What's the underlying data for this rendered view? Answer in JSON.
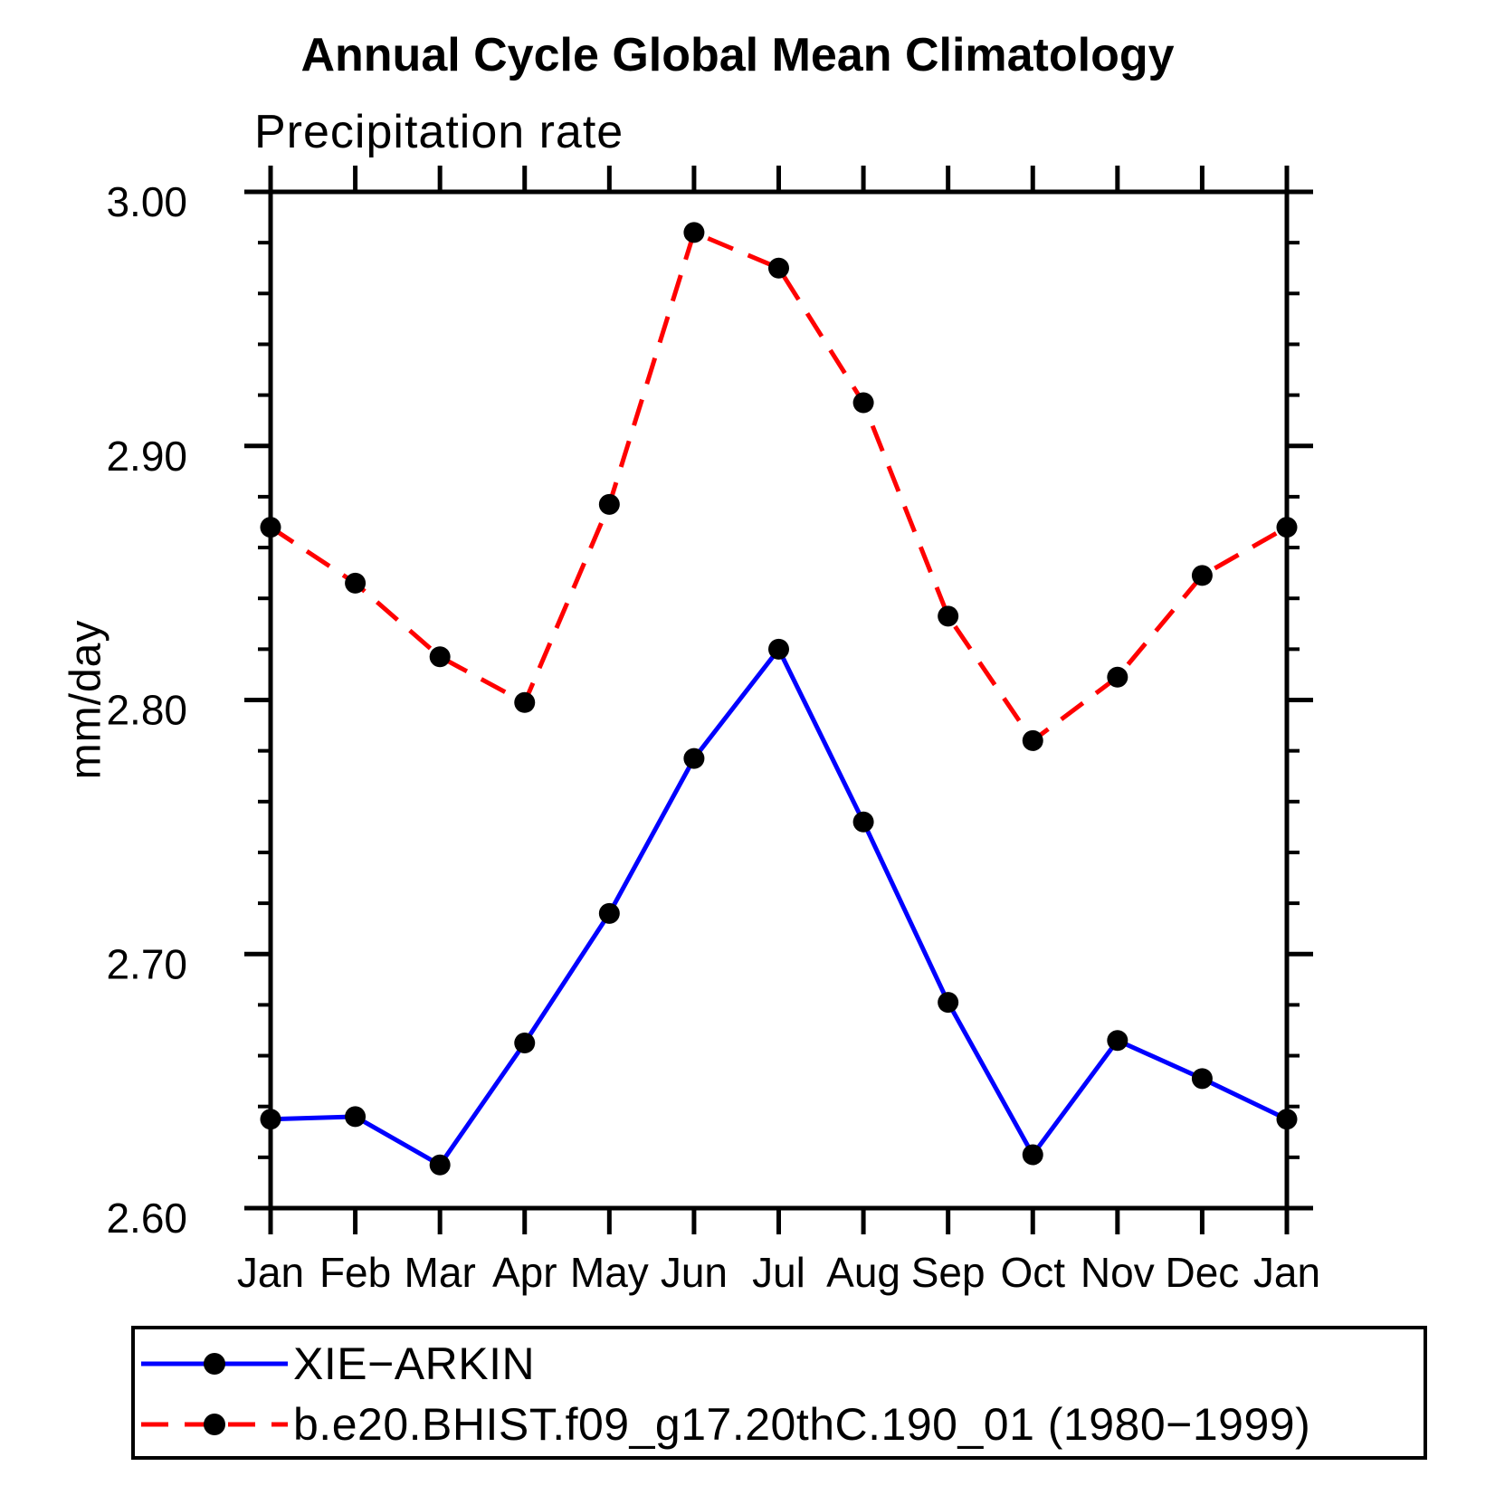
{
  "page": {
    "background": "#ffffff"
  },
  "chart_data": {
    "type": "line",
    "title": "Annual Cycle Global Mean Climatology",
    "subtitle": "Precipitation rate",
    "ylabel": "mm/day",
    "xlabel": "",
    "categories": [
      "Jan",
      "Feb",
      "Mar",
      "Apr",
      "May",
      "Jun",
      "Jul",
      "Aug",
      "Sep",
      "Oct",
      "Nov",
      "Dec",
      "Jan"
    ],
    "ylim": [
      2.6,
      3.0
    ],
    "ytick_major": [
      2.6,
      2.7,
      2.8,
      2.9,
      3.0
    ],
    "ytick_labels": [
      "2.60",
      "2.70",
      "2.80",
      "2.90",
      "3.00"
    ],
    "ytick_minor_step": 0.02,
    "grid": false,
    "legend_position": "bottom-left-box",
    "axis_color": "#000000",
    "marker_color": "#000000",
    "series": [
      {
        "name": "XIE−ARKIN",
        "color": "#0000ff",
        "line_style": "solid",
        "marker": "filled-circle",
        "values": [
          2.635,
          2.636,
          2.617,
          2.665,
          2.716,
          2.777,
          2.82,
          2.752,
          2.681,
          2.621,
          2.666,
          2.651,
          2.635
        ]
      },
      {
        "name": "b.e20.BHIST.f09_g17.20thC.190_01 (1980−1999)",
        "color": "#ff0000",
        "line_style": "dashed",
        "marker": "filled-circle",
        "values": [
          2.868,
          2.846,
          2.817,
          2.799,
          2.877,
          2.984,
          2.97,
          2.917,
          2.833,
          2.784,
          2.809,
          2.849,
          2.868
        ]
      }
    ]
  }
}
